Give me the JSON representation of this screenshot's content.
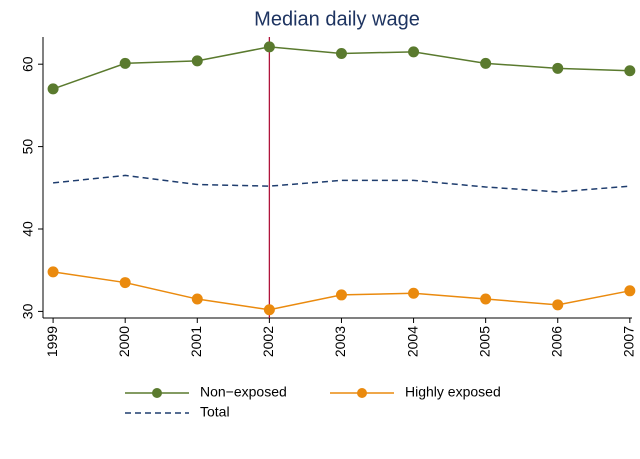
{
  "chart_data": {
    "type": "line",
    "title": "Median daily wage",
    "x": [
      1999,
      2000,
      2001,
      2002,
      2003,
      2004,
      2005,
      2006,
      2007
    ],
    "xlim": [
      1998.86,
      2007.03
    ],
    "xticks": [
      1999,
      2000,
      2001,
      2002,
      2003,
      2004,
      2005,
      2006,
      2007
    ],
    "ylim": [
      29.2,
      63.3
    ],
    "yticks": [
      30,
      40,
      50,
      60
    ],
    "vline": {
      "x": 2002,
      "color": "#b0143c"
    },
    "series": [
      {
        "name": "Non−exposed",
        "color": "#5a7a2e",
        "marker": true,
        "dash": false,
        "values": [
          57.0,
          60.1,
          60.4,
          62.1,
          61.3,
          61.5,
          60.1,
          59.5,
          59.2
        ]
      },
      {
        "name": "Highly exposed",
        "color": "#ea8a0e",
        "marker": true,
        "dash": false,
        "values": [
          34.8,
          33.5,
          31.5,
          30.2,
          32.0,
          32.2,
          31.5,
          30.8,
          32.5
        ]
      },
      {
        "name": "Total",
        "color": "#1f3d6e",
        "marker": false,
        "dash": true,
        "values": [
          45.6,
          46.5,
          45.4,
          45.2,
          45.9,
          45.9,
          45.1,
          44.5,
          45.2
        ]
      }
    ]
  }
}
